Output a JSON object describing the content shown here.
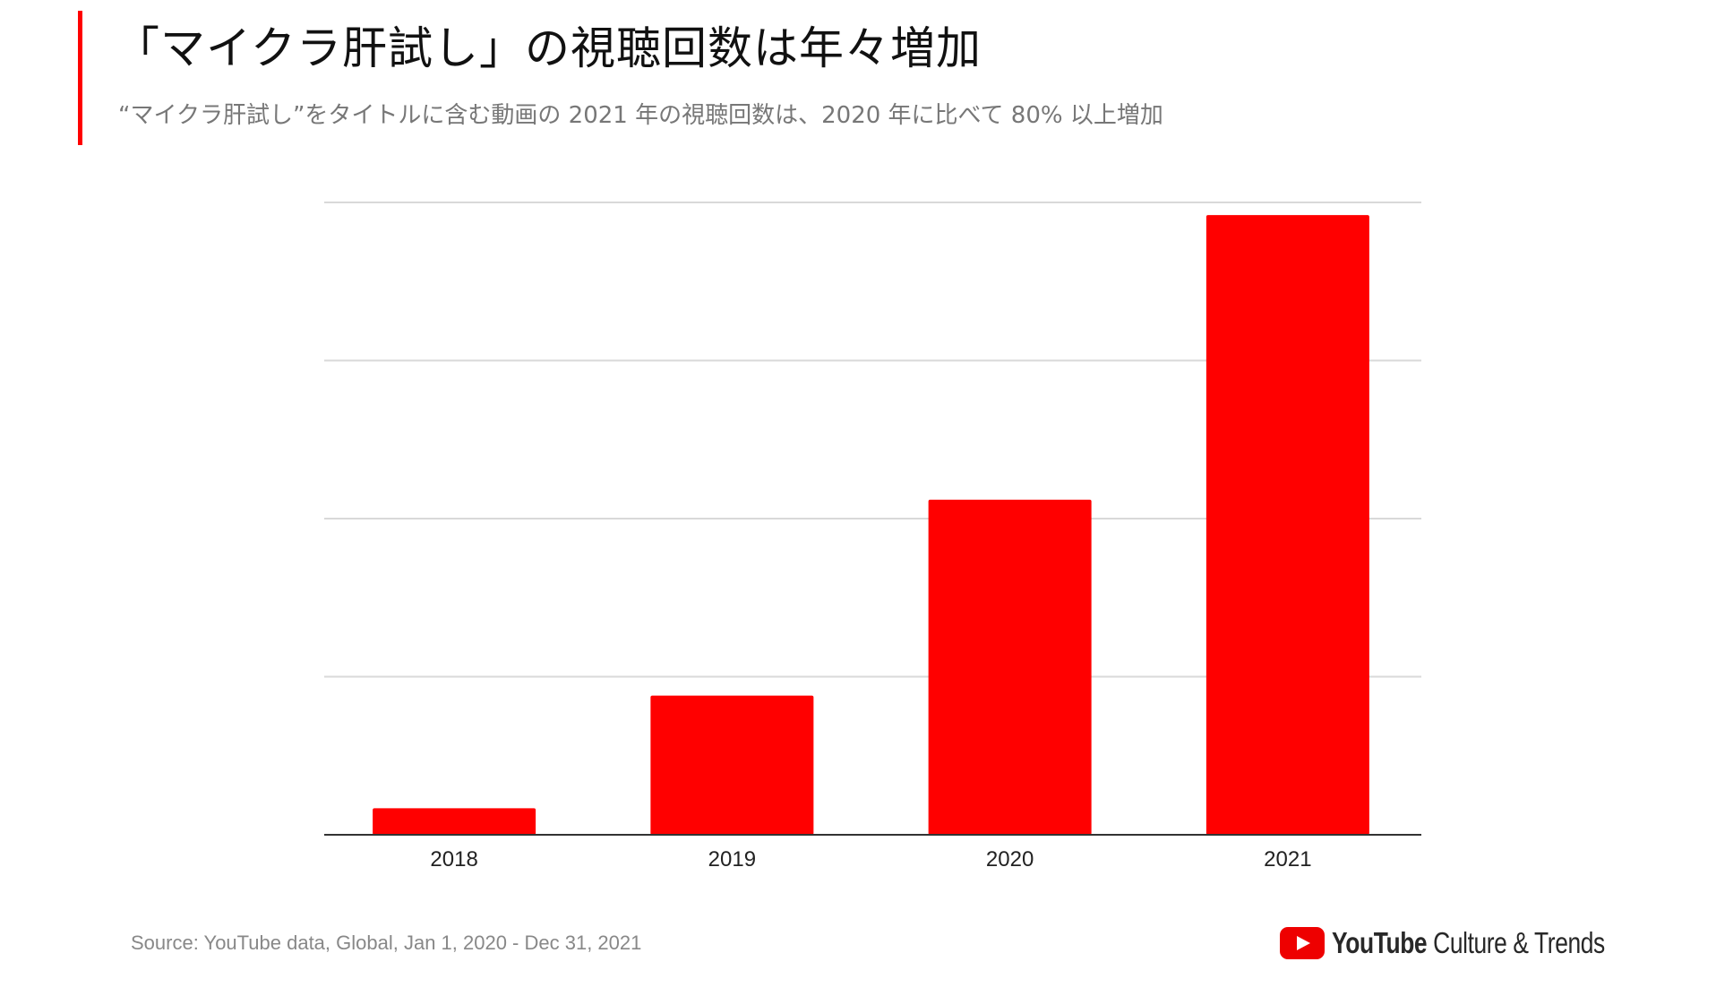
{
  "header": {
    "title": "「マイクラ肝試し」の視聴回数は年々増加",
    "subtitle": "“マイクラ肝試し”をタイトルに含む動画の 2021 年の視聴回数は、2020 年に比べて 80% 以上増加"
  },
  "colors": {
    "accent": "#ff0000",
    "bar": "#ff0000",
    "grid": "#d9d9d9",
    "axis": "#333333"
  },
  "chart_data": {
    "type": "bar",
    "title": "「マイクラ肝試し」の視聴回数は年々増加",
    "categories": [
      "2018",
      "2019",
      "2020",
      "2021"
    ],
    "values": [
      4.2,
      22,
      53,
      98
    ],
    "xlabel": "",
    "ylabel": "",
    "ylim": [
      0,
      100
    ],
    "yticks": [
      0,
      25,
      50,
      75,
      100
    ],
    "y_tick_labels_visible": false,
    "grid": true,
    "legend": "none"
  },
  "footer": {
    "source": "Source: YouTube data, Global, Jan 1, 2020 - Dec 31, 2021",
    "logo_brand": "YouTube",
    "logo_suffix": "Culture & Trends"
  }
}
